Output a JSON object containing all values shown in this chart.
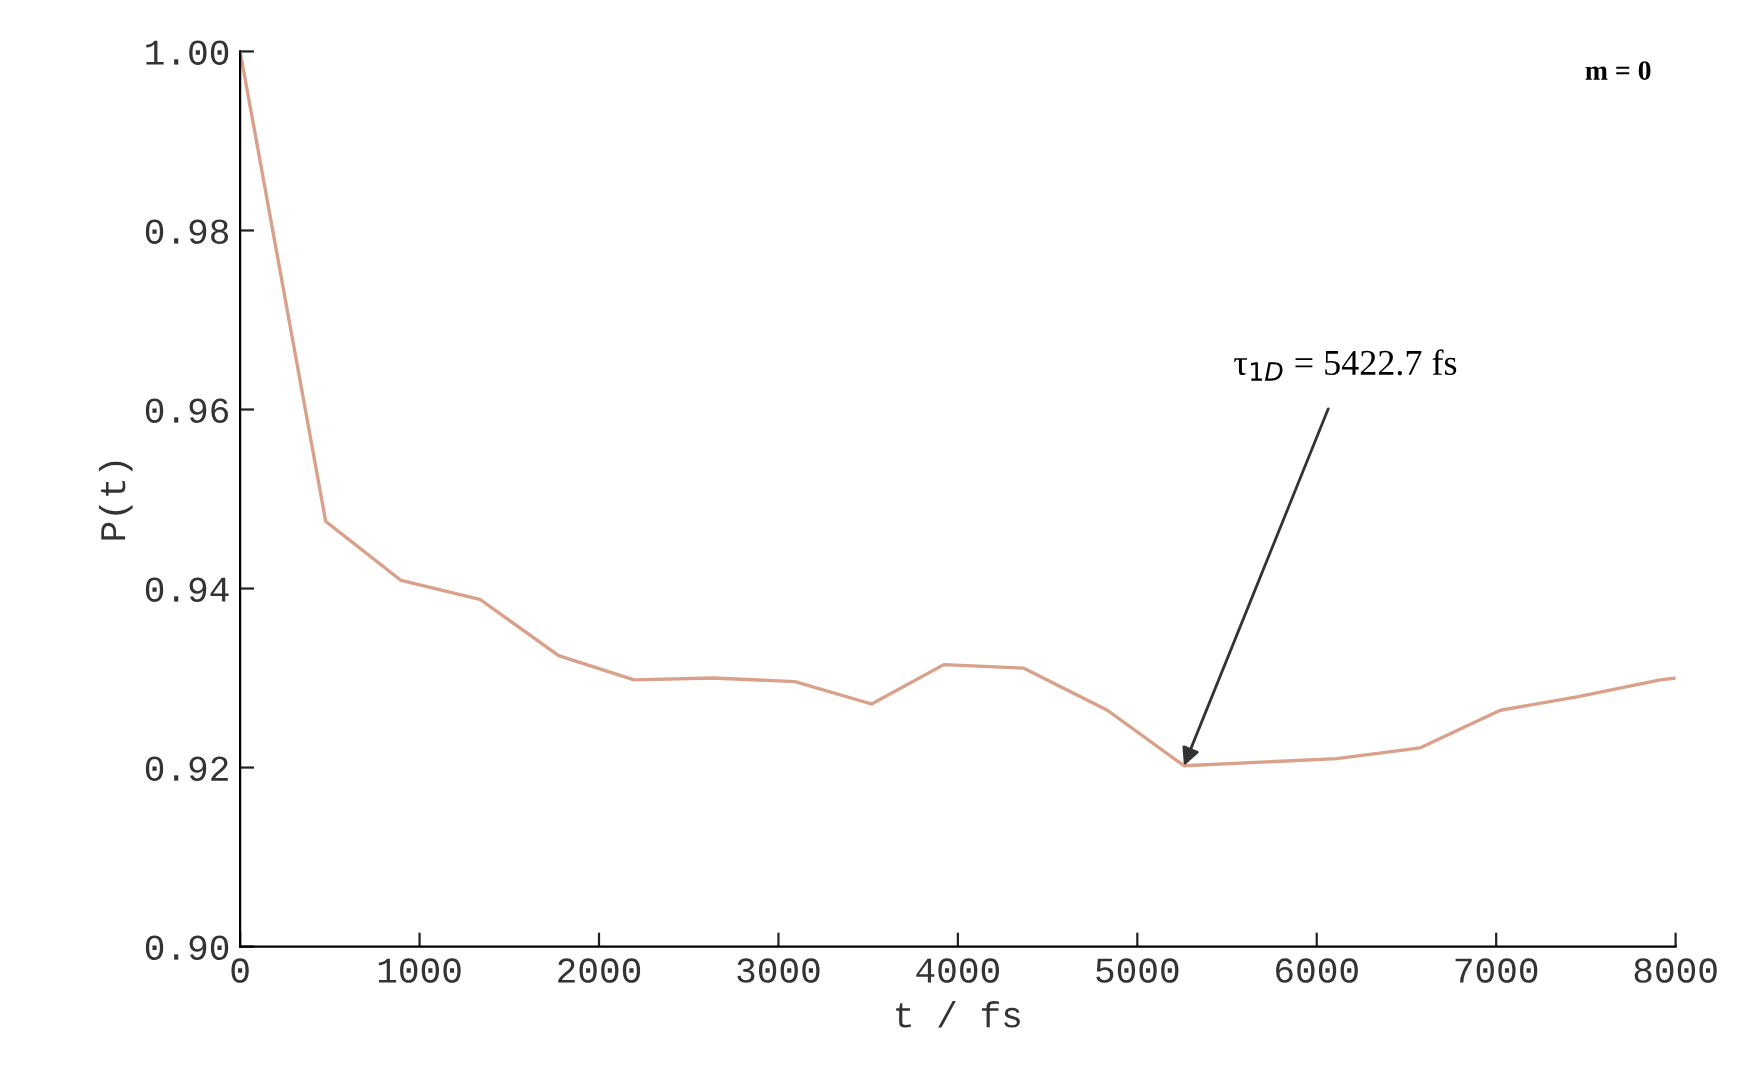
{
  "chart_data": {
    "type": "line",
    "xlabel": "t / fs",
    "ylabel": "P(t)",
    "x": [
      0,
      477,
      897,
      1336,
      1775,
      2195,
      2634,
      3092,
      3519,
      3922,
      4368,
      4833,
      5260,
      6112,
      6577,
      7023,
      7450,
      7915,
      8000
    ],
    "series": [
      {
        "color": "#d9a08a",
        "values": [
          1.0,
          0.9475,
          0.9409,
          0.9388,
          0.9325,
          0.9298,
          0.93,
          0.9296,
          0.9271,
          0.9315,
          0.9311,
          0.9264,
          0.9202,
          0.921,
          0.9222,
          0.9264,
          0.9279,
          0.9298,
          0.93
        ]
      }
    ],
    "xlim": [
      0,
      8000
    ],
    "ylim": [
      0.9,
      1.0
    ],
    "xticks": [
      0,
      1000,
      2000,
      3000,
      4000,
      5000,
      6000,
      7000,
      8000
    ],
    "yticks": [
      {
        "value": 0.9,
        "label": "0.90"
      },
      {
        "value": 0.92,
        "label": "0.92"
      },
      {
        "value": 0.94,
        "label": "0.94"
      },
      {
        "value": 0.96,
        "label": "0.96"
      },
      {
        "value": 0.98,
        "label": "0.98"
      },
      {
        "value": 1.0,
        "label": "1.00"
      }
    ],
    "annotations": [
      "m = 0",
      {
        "text": "τ$_{1D}$ = 5422.7 fs",
        "x": 5260,
        "y": 0.9202
      }
    ],
    "grid": false,
    "legend": false,
    "marker": "none",
    "line_style": "solid"
  }
}
